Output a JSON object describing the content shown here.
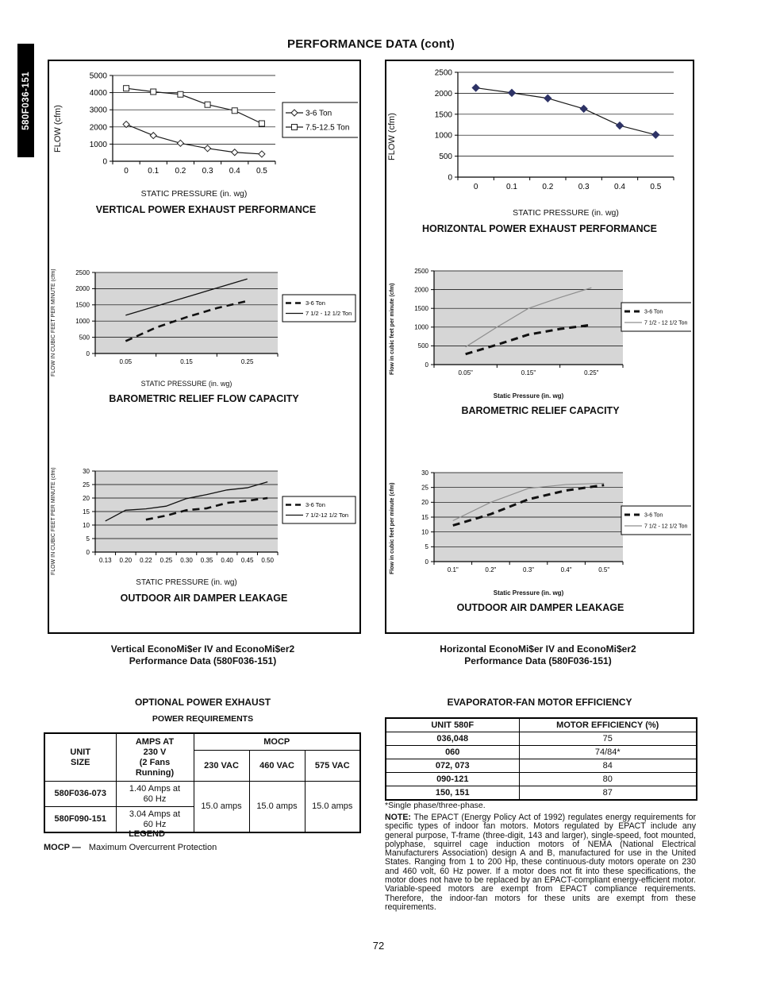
{
  "page": {
    "title": "PERFORMANCE DATA (cont)",
    "number": "72",
    "sidebar_tab": "580F036-151"
  },
  "left_panel": {
    "caption_line1": "Vertical EconoMi$er IV and EconoMi$er2",
    "caption_line2": "Performance Data (580F036-151)"
  },
  "right_panel": {
    "caption_line1": "Horizontal EconoMi$er IV and EconoMi$er2",
    "caption_line2": "Performance Data (580F036-151)"
  },
  "chart_data": {
    "vertical_power_exhaust": {
      "type": "line",
      "title": "VERTICAL POWER EXHAUST PERFORMANCE",
      "xlabel": "STATIC PRESSURE (in. wg)",
      "ylabel": "FLOW (cfm)",
      "categories": [
        "0",
        "0.1",
        "0.2",
        "0.3",
        "0.4",
        "0.5"
      ],
      "ylim": [
        0,
        5000
      ],
      "yticks": [
        0,
        1000,
        2000,
        3000,
        4000,
        5000
      ],
      "plot_bg": "#ffffff",
      "legend": true,
      "series": [
        {
          "name": "3-6 Ton",
          "marker": "open-diamond",
          "dash": false,
          "width": 1.2,
          "color": "#1a1a1a",
          "values": [
            2150,
            1500,
            1050,
            750,
            520,
            420
          ]
        },
        {
          "name": "7.5-12.5 Ton",
          "marker": "open-square",
          "dash": false,
          "width": 1.2,
          "color": "#1a1a1a",
          "values": [
            4250,
            4050,
            3900,
            3300,
            2950,
            2200
          ]
        }
      ]
    },
    "horizontal_power_exhaust": {
      "type": "line",
      "title": "HORIZONTAL POWER EXHAUST PERFORMANCE",
      "xlabel": "STATIC PRESSURE (in. wg)",
      "ylabel": "FLOW (cfm)",
      "categories": [
        "0",
        "0.1",
        "0.2",
        "0.3",
        "0.4",
        "0.5"
      ],
      "ylim": [
        0,
        2500
      ],
      "yticks": [
        0,
        500,
        1000,
        1500,
        2000,
        2500
      ],
      "plot_bg": "#ffffff",
      "legend": false,
      "series": [
        {
          "name": "Flow",
          "marker": "filled-diamond",
          "mcolor": "#2e3366",
          "dash": false,
          "width": 1.2,
          "color": "#1a1a1a",
          "values": [
            2130,
            2010,
            1880,
            1630,
            1230,
            1010
          ]
        }
      ]
    },
    "barometric_relief_flow_capacity": {
      "type": "line",
      "title": "BAROMETRIC RELIEF FLOW CAPACITY",
      "xlabel": "STATIC PRESSURE (in. wg)",
      "ylabel": "FLOW IN CUBIC FEET PER MINUTE (cfm)",
      "xlim": [
        0,
        0.3
      ],
      "xboundaries": [
        0,
        0.1,
        0.2,
        0.3
      ],
      "xticks": [
        {
          "v": 0.05,
          "label": "0.05"
        },
        {
          "v": 0.15,
          "label": "0.15"
        },
        {
          "v": 0.25,
          "label": "0.25"
        }
      ],
      "ylim": [
        0,
        2500
      ],
      "yticks": [
        0,
        500,
        1000,
        1500,
        2000,
        2500
      ],
      "plot_bg": "#d6d6d6",
      "legend": true,
      "series": [
        {
          "name": "3-6 Ton",
          "dash": true,
          "width": 2.6,
          "color": "#111111",
          "x": [
            0.05,
            0.1,
            0.15,
            0.2,
            0.25
          ],
          "values": [
            380,
            800,
            1120,
            1400,
            1620
          ]
        },
        {
          "name": "7 1/2 - 12 1/2 Ton",
          "dash": false,
          "width": 1.3,
          "color": "#111111",
          "x": [
            0.05,
            0.25
          ],
          "values": [
            1180,
            2300
          ]
        }
      ]
    },
    "barometric_relief_capacity": {
      "type": "line",
      "title": "BAROMETRIC RELIEF CAPACITY",
      "xlabel": "Static Pressure (in. wg)",
      "ylabel": "Flow in cubic feet per minute (cfm)",
      "xlim": [
        0,
        0.3
      ],
      "xboundaries": [
        0,
        0.1,
        0.2,
        0.3
      ],
      "xticks": [
        {
          "v": 0.05,
          "label": "0.05\""
        },
        {
          "v": 0.15,
          "label": "0.15\""
        },
        {
          "v": 0.25,
          "label": "0.25\""
        }
      ],
      "ylim": [
        0,
        2500
      ],
      "yticks": [
        0,
        500,
        1000,
        1500,
        2000,
        2500
      ],
      "plot_bg": "#d6d6d6",
      "legend": true,
      "series": [
        {
          "name": "3-6 Ton",
          "dash": true,
          "width": 3,
          "color": "#111111",
          "x": [
            0.05,
            0.1,
            0.15,
            0.2,
            0.25
          ],
          "values": [
            280,
            530,
            800,
            950,
            1060
          ]
        },
        {
          "name": "7 1/2 - 12 1/2 Ton",
          "dash": false,
          "width": 1.2,
          "color": "#8f8f8f",
          "x": [
            0.05,
            0.1,
            0.15,
            0.2,
            0.25
          ],
          "values": [
            470,
            1000,
            1500,
            1790,
            2050
          ]
        }
      ]
    },
    "outdoor_air_damper_leakage_vertical": {
      "type": "line",
      "title": "OUTDOOR AIR DAMPER LEAKAGE",
      "xlabel": "STATIC PRESSURE (in. wg)",
      "ylabel": "FLOW IN CUBIC FEET PER MINUTE (cfm)",
      "categories": [
        "0.13",
        "0.20",
        "0.22",
        "0.25",
        "0.30",
        "0.35",
        "0.40",
        "0.45",
        "0.50"
      ],
      "ylim": [
        0,
        30
      ],
      "yticks": [
        0,
        5,
        10,
        15,
        20,
        25,
        30
      ],
      "plot_bg": "#d6d6d6",
      "legend": true,
      "series": [
        {
          "name": "3-6 Ton",
          "dash": true,
          "width": 2.6,
          "color": "#111111",
          "values": [
            null,
            null,
            12,
            13.5,
            15.5,
            16.2,
            18.2,
            19,
            20
          ]
        },
        {
          "name": "7 1/2-12 1/2 Ton",
          "dash": false,
          "width": 1.3,
          "color": "#111111",
          "values": [
            11.5,
            15.5,
            16,
            17,
            19.8,
            21.3,
            23,
            23.8,
            26
          ]
        }
      ]
    },
    "outdoor_air_damper_leakage_horizontal": {
      "type": "line",
      "title": "OUTDOOR AIR DAMPER LEAKAGE",
      "xlabel": "Static Pressure (in. wg)",
      "ylabel": "Flow in cubic feet per minute (cfm)",
      "categories": [
        "0.1\"",
        "0.2\"",
        "0.3\"",
        "0.4\"",
        "0.5\""
      ],
      "ylim": [
        0,
        30
      ],
      "yticks": [
        0,
        5,
        10,
        15,
        20,
        25,
        30
      ],
      "plot_bg": "#d6d6d6",
      "legend": true,
      "series": [
        {
          "name": "3-6 Ton",
          "dash": true,
          "width": 3,
          "color": "#111111",
          "values": [
            12.2,
            16,
            21,
            24,
            25.8
          ]
        },
        {
          "name": "7 1/2 - 12 1/2 Ton",
          "dash": false,
          "width": 1.2,
          "color": "#8f8f8f",
          "values": [
            13.8,
            20,
            24.7,
            26,
            26.4
          ]
        }
      ]
    }
  },
  "power_exhaust": {
    "heading": "OPTIONAL POWER EXHAUST",
    "subheading": "POWER REQUIREMENTS",
    "table": {
      "unit_header": [
        "UNIT",
        "SIZE"
      ],
      "amps_header": [
        "AMPS AT",
        "230 V",
        "(2 Fans",
        "Running)"
      ],
      "mocp_header": "MOCP",
      "vac_headers": [
        "230 VAC",
        "460 VAC",
        "575 VAC"
      ],
      "rows": [
        {
          "unit": "580F036-073",
          "amps": [
            "1.40 Amps at",
            "60 Hz"
          ]
        },
        {
          "unit": "580F090-151",
          "amps": [
            "3.04 Amps at",
            "60 Hz"
          ]
        }
      ],
      "mocp_values": [
        "15.0 amps",
        "15.0 amps",
        "15.0 amps"
      ]
    },
    "legend_title": "LEGEND",
    "legend_term": "MOCP —",
    "legend_def": "Maximum Overcurrent Protection"
  },
  "motor_efficiency": {
    "heading": "EVAPORATOR-FAN MOTOR EFFICIENCY",
    "col_headers": [
      "UNIT 580F",
      "MOTOR EFFICIENCY (%)"
    ],
    "rows": [
      [
        "036,048",
        "75"
      ],
      [
        "060",
        "74/84*"
      ],
      [
        "072, 073",
        "84"
      ],
      [
        "090-121",
        "80"
      ],
      [
        "150, 151",
        "87"
      ]
    ],
    "footnote": "*Single phase/three-phase.",
    "note_label": "NOTE:",
    "note_text": "The EPACT (Energy Policy Act of 1992) regulates energy requirements for specific types of indoor fan motors. Motors regulated by EPACT include any general purpose, T-frame (three-digit, 143 and larger), single-speed, foot mounted, polyphase, squirrel cage induction motors of NEMA (National Electrical Manufacturers Association) design A and B, manufactured for use in the United States. Ranging from 1 to 200 Hp, these continuous-duty motors operate on 230 and 460 volt, 60 Hz power. If a motor does not fit into these specifications, the motor does not have to be replaced by an EPACT-compliant energy-efficient motor. Variable-speed motors are exempt from EPACT compliance requirements. Therefore, the indoor-fan motors for these units are exempt from these requirements."
  }
}
